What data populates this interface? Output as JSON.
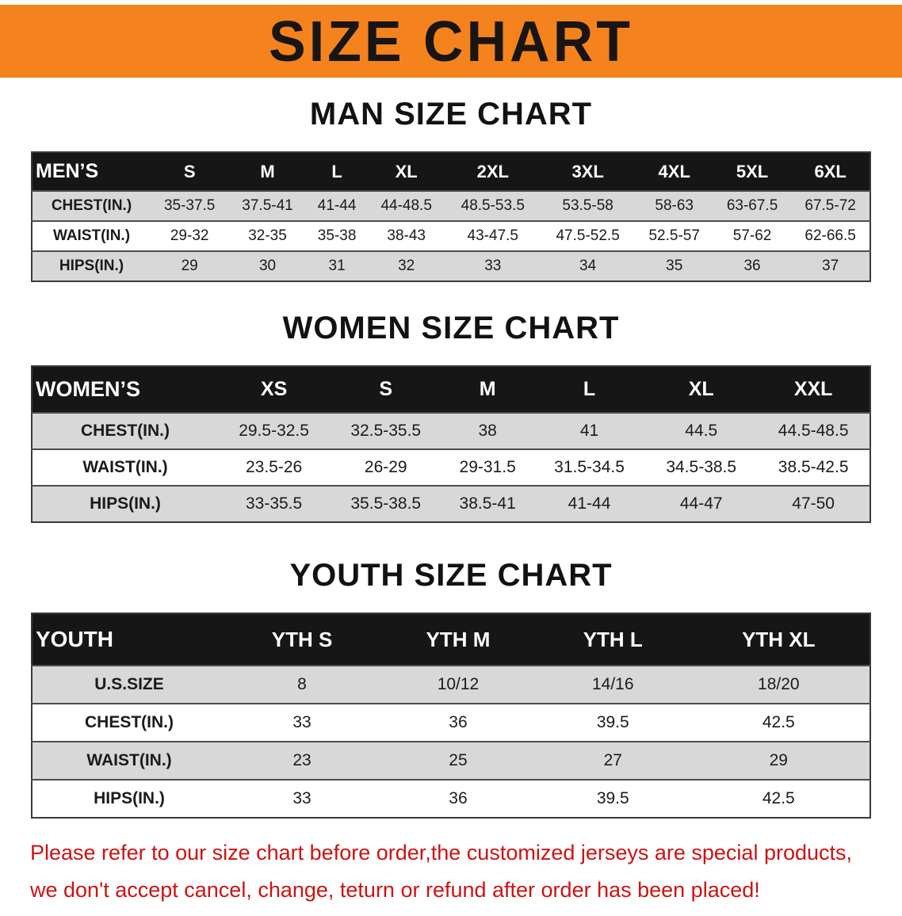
{
  "banner": {
    "title": "SIZE CHART"
  },
  "sections": [
    {
      "id": "men",
      "heading": "MAN SIZE CHART",
      "table": {
        "header": [
          "MEN’S",
          "S",
          "M",
          "L",
          "XL",
          "2XL",
          "3XL",
          "4XL",
          "5XL",
          "6XL"
        ],
        "rows": [
          [
            "CHEST(IN.)",
            "35-37.5",
            "37.5-41",
            "41-44",
            "44-48.5",
            "48.5-53.5",
            "53.5-58",
            "58-63",
            "63-67.5",
            "67.5-72"
          ],
          [
            "WAIST(IN.)",
            "29-32",
            "32-35",
            "35-38",
            "38-43",
            "43-47.5",
            "47.5-52.5",
            "52.5-57",
            "57-62",
            "62-66.5"
          ],
          [
            "HIPS(IN.)",
            "29",
            "30",
            "31",
            "32",
            "33",
            "34",
            "35",
            "36",
            "37"
          ]
        ]
      }
    },
    {
      "id": "women",
      "heading": "WOMEN SIZE CHART",
      "table": {
        "header": [
          "WOMEN’S",
          "XS",
          "S",
          "M",
          "L",
          "XL",
          "XXL"
        ],
        "rows": [
          [
            "CHEST(IN.)",
            "29.5-32.5",
            "32.5-35.5",
            "38",
            "41",
            "44.5",
            "44.5-48.5"
          ],
          [
            "WAIST(IN.)",
            "23.5-26",
            "26-29",
            "29-31.5",
            "31.5-34.5",
            "34.5-38.5",
            "38.5-42.5"
          ],
          [
            "HIPS(IN.)",
            "33-35.5",
            "35.5-38.5",
            "38.5-41",
            "41-44",
            "44-47",
            "47-50"
          ]
        ]
      }
    },
    {
      "id": "youth",
      "heading": "YOUTH SIZE CHART",
      "table": {
        "header": [
          "YOUTH",
          "YTH S",
          "YTH M",
          "YTH L",
          "YTH XL"
        ],
        "rows": [
          [
            "U.S.SIZE",
            "8",
            "10/12",
            "14/16",
            "18/20"
          ],
          [
            "CHEST(IN.)",
            "33",
            "36",
            "39.5",
            "42.5"
          ],
          [
            "WAIST(IN.)",
            "23",
            "25",
            "27",
            "29"
          ],
          [
            "HIPS(IN.)",
            "33",
            "36",
            "39.5",
            "42.5"
          ]
        ]
      }
    }
  ],
  "footer": {
    "lines": [
      "Please refer to our size chart before order,the customized jerseys are special products,",
      "we don't accept cancel, change, teturn or refund after order has been placed!"
    ]
  },
  "colors": {
    "banner_bg": "#f5831d",
    "banner_text": "#181512",
    "header_bg": "#161616",
    "stripe": "#d8d8d8",
    "row_alt": "#ffffff",
    "border": "#3a3a3a",
    "footer_red": "#ce1212"
  }
}
